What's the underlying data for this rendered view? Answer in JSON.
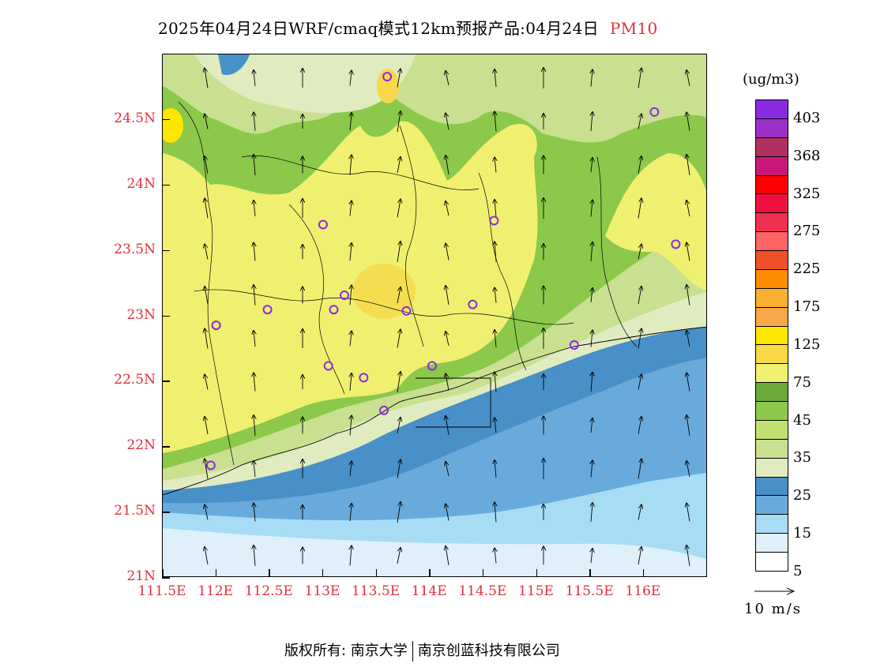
{
  "title": {
    "text": "2025年04月24日WRF/cmaq模式12km预报产品:04月24日",
    "pollutant": "PM10",
    "pollutant_color": "#e0303a"
  },
  "map": {
    "lon_range": [
      111.5,
      116.6
    ],
    "lat_range": [
      21.0,
      25.0
    ],
    "lat_ticks": [
      {
        "value": 24.5,
        "label": "24.5N"
      },
      {
        "value": 24.0,
        "label": "24N"
      },
      {
        "value": 23.5,
        "label": "23.5N"
      },
      {
        "value": 23.0,
        "label": "23N"
      },
      {
        "value": 22.5,
        "label": "22.5N"
      },
      {
        "value": 22.0,
        "label": "22N"
      },
      {
        "value": 21.5,
        "label": "21.5N"
      },
      {
        "value": 21.0,
        "label": "21N"
      }
    ],
    "lon_ticks": [
      {
        "value": 111.5,
        "label": "111.5E"
      },
      {
        "value": 112.0,
        "label": "112E"
      },
      {
        "value": 112.5,
        "label": "112.5E"
      },
      {
        "value": 113.0,
        "label": "113E"
      },
      {
        "value": 113.5,
        "label": "113.5E"
      },
      {
        "value": 114.0,
        "label": "114E"
      },
      {
        "value": 114.5,
        "label": "114.5E"
      },
      {
        "value": 115.0,
        "label": "115E"
      },
      {
        "value": 115.5,
        "label": "115.5E"
      },
      {
        "value": 116.0,
        "label": "116E"
      }
    ],
    "axis_label_color": "#e0303a",
    "stations": [
      {
        "lon": 113.6,
        "lat": 24.83
      },
      {
        "lon": 116.1,
        "lat": 24.56
      },
      {
        "lon": 113.0,
        "lat": 23.7
      },
      {
        "lon": 114.6,
        "lat": 23.73
      },
      {
        "lon": 116.3,
        "lat": 23.55
      },
      {
        "lon": 112.0,
        "lat": 22.93
      },
      {
        "lon": 112.48,
        "lat": 23.05
      },
      {
        "lon": 113.1,
        "lat": 23.05
      },
      {
        "lon": 113.2,
        "lat": 23.16
      },
      {
        "lon": 113.78,
        "lat": 23.04
      },
      {
        "lon": 114.4,
        "lat": 23.09
      },
      {
        "lon": 115.35,
        "lat": 22.78
      },
      {
        "lon": 113.05,
        "lat": 22.62
      },
      {
        "lon": 113.38,
        "lat": 22.53
      },
      {
        "lon": 114.02,
        "lat": 22.62
      },
      {
        "lon": 113.57,
        "lat": 22.28
      },
      {
        "lon": 111.95,
        "lat": 21.86
      }
    ],
    "station_color": "#8a2be2"
  },
  "colorbar": {
    "unit": "(ug/m3)",
    "colors": [
      "#8a2be2",
      "#9b30c8",
      "#b03060",
      "#c8187a",
      "#ff0000",
      "#f01040",
      "#f03050",
      "#ff6464",
      "#f05028",
      "#ff8c00",
      "#f8b030",
      "#f8a848",
      "#ffe600",
      "#f8d848",
      "#f0f070",
      "#6aa83a",
      "#8cc84a",
      "#c0e070",
      "#c8e090",
      "#e0ecc0",
      "#4890c8",
      "#68aadc",
      "#a8dcf5",
      "#dff0fa",
      "#ffffff"
    ],
    "labels": [
      "403",
      "368",
      "325",
      "275",
      "225",
      "175",
      "125",
      "75",
      "45",
      "35",
      "25",
      "15",
      "5"
    ]
  },
  "wind_reference": {
    "label": "10 m/s"
  },
  "footer": {
    "copyright": "版权所有: 南京大学",
    "company": "南京创蓝科技有限公司"
  }
}
